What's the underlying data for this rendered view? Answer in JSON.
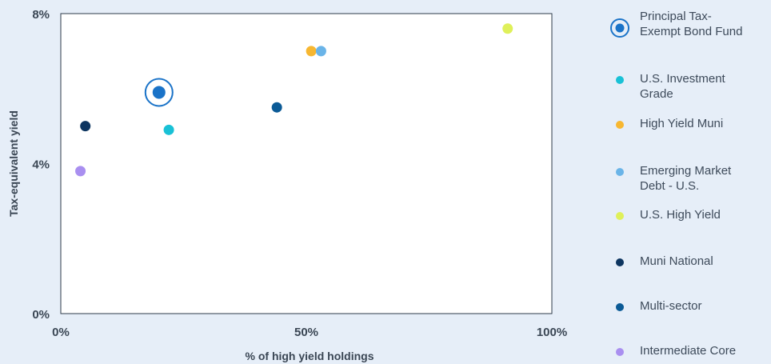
{
  "chart_data": {
    "type": "scatter",
    "xlabel": "% of high yield holdings",
    "ylabel": "Tax-equivalent yield",
    "xlim": [
      0,
      100
    ],
    "ylim": [
      0,
      8
    ],
    "x_ticks": [
      "0%",
      "50%",
      "100%"
    ],
    "x_tick_values": [
      0,
      50,
      100
    ],
    "y_ticks": [
      "0%",
      "4%",
      "8%"
    ],
    "y_tick_values": [
      0,
      4,
      8
    ],
    "grid": false,
    "legend_position": "right",
    "series": [
      {
        "name": "Principal Tax-Exempt Bond Fund",
        "label_lines": [
          "Principal Tax-",
          "Exempt Bond Fund"
        ],
        "color": "#1a73c8",
        "marker": "ring",
        "points": [
          [
            20,
            5.9
          ]
        ]
      },
      {
        "name": "U.S. Investment Grade",
        "label_lines": [
          "U.S. Investment",
          "Grade"
        ],
        "color": "#19c1d6",
        "marker": "dot",
        "points": [
          [
            22,
            4.9
          ]
        ]
      },
      {
        "name": "High Yield Muni",
        "label_lines": [
          "High Yield Muni"
        ],
        "color": "#f7b731",
        "marker": "dot",
        "points": [
          [
            51,
            7.0
          ]
        ]
      },
      {
        "name": "Emerging Market Debt - U.S.",
        "label_lines": [
          "Emerging Market",
          "Debt - U.S."
        ],
        "color": "#6ab4e8",
        "marker": "dot",
        "points": [
          [
            53,
            7.0
          ]
        ]
      },
      {
        "name": "U.S. High Yield",
        "label_lines": [
          "U.S. High Yield"
        ],
        "color": "#dff05a",
        "marker": "dot",
        "points": [
          [
            91,
            7.6
          ]
        ]
      },
      {
        "name": "Muni National",
        "label_lines": [
          "Muni National"
        ],
        "color": "#0d3560",
        "marker": "dot",
        "points": [
          [
            5,
            5.0
          ]
        ]
      },
      {
        "name": "Multi-sector",
        "label_lines": [
          "Multi-sector"
        ],
        "color": "#0b5a96",
        "marker": "dot",
        "points": [
          [
            44,
            5.5
          ]
        ]
      },
      {
        "name": "Intermediate Core",
        "label_lines": [
          "Intermediate Core"
        ],
        "color": "#a98ff0",
        "marker": "dot",
        "points": [
          [
            4,
            3.8
          ]
        ]
      }
    ]
  }
}
